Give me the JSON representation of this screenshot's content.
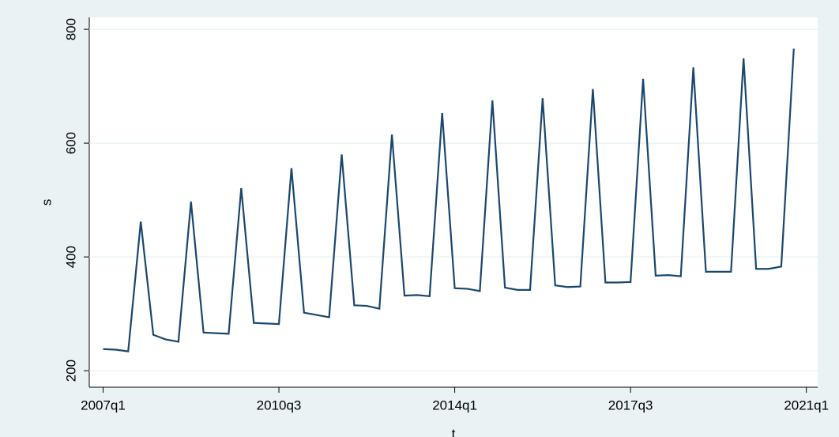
{
  "chart_data": {
    "type": "line",
    "x_label": "t",
    "y_label": "s",
    "x": [
      188,
      189,
      190,
      191,
      192,
      193,
      194,
      195,
      196,
      197,
      198,
      199,
      200,
      201,
      202,
      203,
      204,
      205,
      206,
      207,
      208,
      209,
      210,
      211,
      212,
      213,
      214,
      215,
      216,
      217,
      218,
      219,
      220,
      221,
      222,
      223,
      224,
      225,
      226,
      227,
      228,
      229,
      230,
      231,
      232,
      233,
      234,
      235,
      236,
      237,
      238,
      239,
      240,
      241,
      242,
      243
    ],
    "series": [
      {
        "name": "s",
        "color": "#1a476f",
        "values": [
          238,
          237,
          234,
          462,
          263,
          255,
          251,
          497,
          267,
          266,
          265,
          521,
          284,
          283,
          282,
          556,
          302,
          298,
          294,
          580,
          315,
          314,
          309,
          615,
          332,
          333,
          331,
          653,
          345,
          344,
          340,
          675,
          346,
          342,
          342,
          679,
          350,
          347,
          348,
          695,
          355,
          355,
          356,
          713,
          367,
          368,
          366,
          733,
          374,
          374,
          374,
          749,
          379,
          379,
          383,
          766
        ]
      }
    ],
    "xlim": [
      186.9,
      244.9
    ],
    "xticks": [
      {
        "value": 188,
        "label": "2007q1"
      },
      {
        "value": 202,
        "label": "2010q3"
      },
      {
        "value": 216,
        "label": "2014q1"
      },
      {
        "value": 230,
        "label": "2017q3"
      },
      {
        "value": 244,
        "label": "2021q1"
      }
    ],
    "ylim": [
      171,
      821
    ],
    "yticks": [
      200,
      400,
      600,
      800
    ],
    "grid": true
  }
}
